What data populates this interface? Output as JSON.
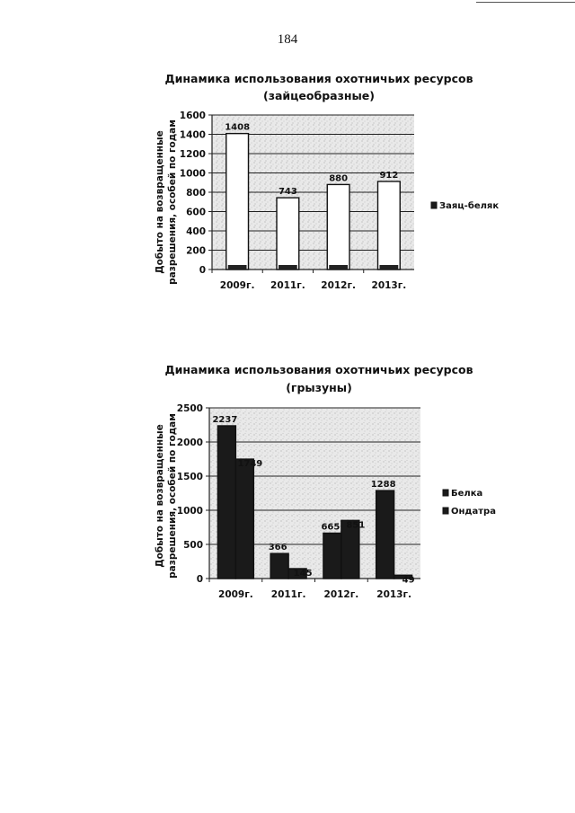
{
  "page": {
    "number": "184"
  },
  "chart_data": [
    {
      "type": "bar",
      "title_lines": [
        "Динамика использования охотничьих ресурсов",
        "(зайцеобразные)"
      ],
      "ylabel_lines": [
        "Добыто на возвращенные",
        "разрешения, особей по годам"
      ],
      "xlabel": "",
      "categories": [
        "2009г.",
        "2011г.",
        "2012г.",
        "2013г."
      ],
      "ylim": [
        0,
        1600
      ],
      "yticks": [
        0,
        200,
        400,
        600,
        800,
        1000,
        1200,
        1400,
        1600
      ],
      "grid": true,
      "legend_position": "right",
      "series": [
        {
          "name": "Заяц-беляк",
          "values": [
            1408,
            743,
            880,
            912
          ],
          "color": "#ffffff",
          "data_labels": [
            "1408",
            "743",
            "880",
            "912"
          ]
        }
      ]
    },
    {
      "type": "bar",
      "title_lines": [
        "Динамика использования охотничьих ресурсов",
        "(грызуны)"
      ],
      "ylabel_lines": [
        "Добыто на возвращенные",
        "разрешения, особей по годам"
      ],
      "xlabel": "",
      "categories": [
        "2009г.",
        "2011г.",
        "2012г.",
        "2013г."
      ],
      "ylim": [
        0,
        2500
      ],
      "yticks": [
        0,
        500,
        1000,
        1500,
        2000,
        2500
      ],
      "grid": true,
      "legend_position": "right",
      "series": [
        {
          "name": "Белка",
          "values": [
            2237,
            366,
            665,
            1288
          ],
          "color": "#1a1a1a",
          "data_labels": [
            "2237",
            "366",
            "665",
            "1288"
          ]
        },
        {
          "name": "Ондатра",
          "values": [
            1749,
            145,
            851,
            49
          ],
          "color": "#1a1a1a",
          "data_labels": [
            "1749",
            "145",
            "851",
            "49"
          ]
        }
      ]
    }
  ]
}
